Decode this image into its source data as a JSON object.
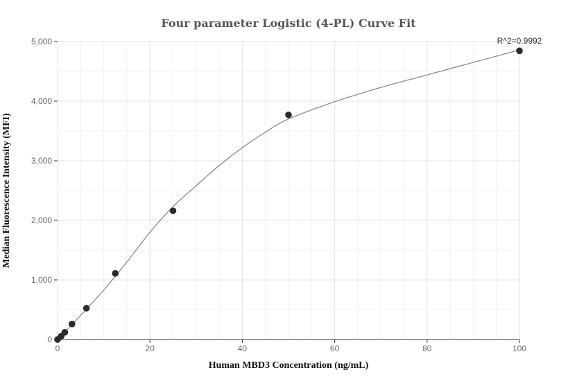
{
  "chart_data": {
    "type": "scatter",
    "title": "Four parameter Logistic (4-PL) Curve Fit",
    "xlabel": "Human MBD3 Concentration (ng/mL)",
    "ylabel": "Median Fluorescence Intensity (MFI)",
    "xlim": [
      0,
      100
    ],
    "ylim": [
      0,
      5000
    ],
    "x_ticks": [
      0,
      20,
      40,
      60,
      80,
      100
    ],
    "x_tick_labels": [
      "0",
      "20",
      "40",
      "60",
      "80",
      "100"
    ],
    "y_ticks": [
      0,
      1000,
      2000,
      3000,
      4000,
      5000
    ],
    "y_tick_labels": [
      "0",
      "1,000",
      "2,000",
      "3,000",
      "4,000",
      "5,000"
    ],
    "grid": true,
    "points": {
      "x": [
        0,
        0.78,
        1.56,
        3.125,
        6.25,
        12.5,
        25,
        50,
        100
      ],
      "y": [
        0,
        55,
        120,
        260,
        525,
        1110,
        2160,
        3770,
        4845
      ]
    },
    "fit_curve": {
      "type": "4-PL",
      "x": [
        0,
        3,
        6,
        10,
        15,
        20,
        25,
        30,
        35,
        40,
        45,
        50,
        60,
        70,
        80,
        90,
        100
      ],
      "y": [
        0,
        240,
        490,
        830,
        1300,
        1800,
        2230,
        2580,
        2920,
        3220,
        3480,
        3700,
        3990,
        4230,
        4440,
        4650,
        4860
      ]
    },
    "annotation": "R^2=0.9992"
  },
  "colors": {
    "points": "#2b2b2b",
    "curve": "#808080",
    "grid": "#e3e3ea",
    "title": "#555555"
  }
}
